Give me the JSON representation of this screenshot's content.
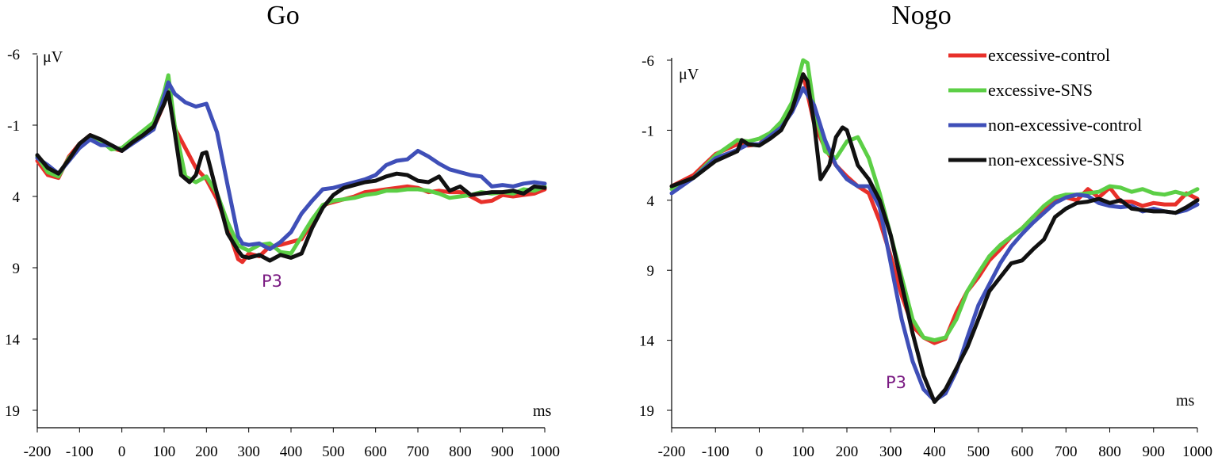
{
  "chart_data": [
    {
      "type": "line",
      "title": "Go",
      "xlabel": "ms",
      "ylabel": "μV",
      "xlim": [
        -200,
        1000
      ],
      "ylim": [
        -6,
        19
      ],
      "y_inverted": true,
      "x_ticks": [
        -200,
        -100,
        0,
        100,
        200,
        300,
        400,
        500,
        600,
        700,
        800,
        900,
        1000
      ],
      "y_ticks": [
        -6,
        -1,
        4,
        9,
        14,
        19
      ],
      "annotations": [
        {
          "text": "P3",
          "x": 355,
          "y": 11
        }
      ],
      "legend": "none",
      "series": [
        {
          "name": "excessive-control",
          "color": "#e8302a",
          "x": [
            -200,
            -175,
            -150,
            -125,
            -100,
            -75,
            -50,
            -25,
            0,
            25,
            50,
            75,
            100,
            110,
            125,
            150,
            175,
            200,
            225,
            250,
            275,
            285,
            300,
            325,
            350,
            375,
            400,
            425,
            450,
            475,
            500,
            525,
            550,
            575,
            600,
            625,
            650,
            675,
            700,
            725,
            750,
            775,
            800,
            825,
            850,
            875,
            900,
            925,
            950,
            975,
            1000
          ],
          "y": [
            1.5,
            2.5,
            2.7,
            1.2,
            0.3,
            -0.3,
            0.2,
            0.6,
            0.8,
            0.1,
            -0.4,
            -0.8,
            -2.5,
            -3.5,
            -0.8,
            0.6,
            2.0,
            2.8,
            4.2,
            6.2,
            8.4,
            8.6,
            8.0,
            8.2,
            7.5,
            7.4,
            7.2,
            7.0,
            5.8,
            4.6,
            4.4,
            4.2,
            4.0,
            3.7,
            3.6,
            3.5,
            3.4,
            3.3,
            3.4,
            3.7,
            3.6,
            3.7,
            3.7,
            4.0,
            4.4,
            4.3,
            3.9,
            4.0,
            3.9,
            3.8,
            3.5
          ]
        },
        {
          "name": "excessive-SNS",
          "color": "#5ccf46",
          "x": [
            -200,
            -175,
            -150,
            -125,
            -100,
            -75,
            -50,
            -25,
            0,
            25,
            50,
            75,
            100,
            110,
            125,
            150,
            175,
            200,
            225,
            250,
            275,
            285,
            300,
            325,
            350,
            375,
            400,
            425,
            450,
            475,
            500,
            525,
            550,
            575,
            600,
            625,
            650,
            675,
            700,
            725,
            750,
            775,
            800,
            825,
            850,
            875,
            900,
            925,
            950,
            975,
            1000
          ],
          "y": [
            1.2,
            2.3,
            2.6,
            1.3,
            0.5,
            -0.2,
            0.1,
            0.7,
            0.6,
            0.0,
            -0.6,
            -1.2,
            -3.3,
            -4.5,
            -1.0,
            2.6,
            3.0,
            2.6,
            3.8,
            5.8,
            7.4,
            7.6,
            7.8,
            7.4,
            7.3,
            7.9,
            8.0,
            6.8,
            5.6,
            4.6,
            4.3,
            4.2,
            4.1,
            3.9,
            3.8,
            3.6,
            3.6,
            3.5,
            3.5,
            3.6,
            3.8,
            4.1,
            4.0,
            3.9,
            3.7,
            3.8,
            3.7,
            3.8,
            3.5,
            3.6,
            3.3
          ]
        },
        {
          "name": "non-excessive-control",
          "color": "#3f4fb8",
          "x": [
            -200,
            -175,
            -150,
            -125,
            -100,
            -75,
            -50,
            -25,
            0,
            25,
            50,
            75,
            100,
            110,
            125,
            150,
            175,
            200,
            225,
            250,
            275,
            285,
            300,
            325,
            350,
            375,
            400,
            425,
            450,
            475,
            500,
            525,
            550,
            575,
            600,
            625,
            650,
            675,
            700,
            725,
            750,
            775,
            800,
            825,
            850,
            875,
            900,
            925,
            950,
            975,
            1000
          ],
          "y": [
            1.3,
            1.8,
            2.4,
            1.5,
            0.6,
            0.0,
            0.4,
            0.4,
            0.8,
            0.3,
            -0.2,
            -0.7,
            -3.0,
            -4.0,
            -3.2,
            -2.6,
            -2.3,
            -2.5,
            -0.5,
            3.2,
            6.8,
            7.3,
            7.4,
            7.3,
            7.7,
            7.2,
            6.5,
            5.2,
            4.3,
            3.5,
            3.4,
            3.2,
            3.0,
            2.8,
            2.5,
            1.8,
            1.5,
            1.4,
            0.8,
            1.2,
            1.7,
            2.1,
            2.3,
            2.5,
            2.6,
            3.3,
            3.2,
            3.3,
            3.1,
            3.0,
            3.1
          ]
        },
        {
          "name": "non-excessive-SNS",
          "color": "#111111",
          "x": [
            -200,
            -175,
            -150,
            -125,
            -100,
            -75,
            -50,
            -25,
            0,
            25,
            50,
            75,
            100,
            110,
            125,
            140,
            160,
            175,
            190,
            200,
            225,
            250,
            275,
            285,
            300,
            325,
            350,
            375,
            400,
            425,
            450,
            475,
            500,
            525,
            550,
            575,
            600,
            625,
            650,
            675,
            700,
            725,
            750,
            775,
            800,
            825,
            850,
            875,
            900,
            925,
            950,
            975,
            1000
          ],
          "y": [
            1.1,
            2.0,
            2.4,
            1.4,
            0.3,
            -0.3,
            0.0,
            0.4,
            0.8,
            0.2,
            -0.3,
            -0.9,
            -2.5,
            -3.3,
            -0.5,
            2.5,
            3.0,
            2.5,
            1.0,
            0.9,
            3.8,
            6.6,
            7.8,
            8.2,
            8.3,
            8.1,
            8.5,
            8.1,
            8.3,
            8.0,
            6.2,
            4.8,
            3.9,
            3.4,
            3.2,
            3.0,
            2.9,
            2.6,
            2.4,
            2.5,
            2.9,
            3.0,
            2.6,
            3.6,
            3.3,
            3.9,
            3.8,
            3.7,
            3.7,
            3.6,
            3.8,
            3.3,
            3.4
          ]
        }
      ]
    },
    {
      "type": "line",
      "title": "Nogo",
      "xlabel": "ms",
      "ylabel": "μV",
      "xlim": [
        -200,
        1000
      ],
      "ylim": [
        -6,
        19
      ],
      "y_inverted": true,
      "x_ticks": [
        -200,
        -100,
        0,
        100,
        200,
        300,
        400,
        500,
        600,
        700,
        800,
        900,
        1000
      ],
      "y_ticks": [
        -6,
        -1,
        4,
        9,
        14,
        19
      ],
      "annotations": [
        {
          "text": "P3",
          "x": 330,
          "y": 17.5
        }
      ],
      "legend": "top-right",
      "series": [
        {
          "name": "excessive-control",
          "color": "#e8302a",
          "x": [
            -200,
            -150,
            -100,
            -50,
            -25,
            0,
            25,
            50,
            75,
            100,
            125,
            150,
            175,
            200,
            225,
            250,
            275,
            300,
            325,
            350,
            375,
            400,
            425,
            450,
            475,
            500,
            525,
            550,
            575,
            600,
            625,
            650,
            675,
            700,
            725,
            750,
            775,
            800,
            825,
            850,
            875,
            900,
            925,
            950,
            975,
            1000
          ],
          "y": [
            3.0,
            2.2,
            0.7,
            0.0,
            0.1,
            0.0,
            -0.8,
            -1.5,
            -2.5,
            -5.0,
            -1.5,
            0.3,
            1.5,
            2.3,
            3.0,
            3.5,
            5.5,
            8.0,
            10.8,
            13.0,
            13.8,
            14.2,
            13.9,
            12.0,
            10.5,
            9.5,
            8.3,
            7.5,
            6.6,
            6.0,
            5.2,
            4.6,
            4.0,
            3.8,
            4.0,
            3.2,
            3.8,
            3.1,
            4.1,
            4.1,
            4.4,
            4.2,
            4.3,
            4.3,
            3.5,
            3.9
          ]
        },
        {
          "name": "excessive-SNS",
          "color": "#5ccf46",
          "x": [
            -200,
            -150,
            -100,
            -50,
            -25,
            0,
            25,
            50,
            75,
            100,
            110,
            125,
            150,
            175,
            200,
            225,
            250,
            275,
            300,
            325,
            350,
            375,
            400,
            425,
            450,
            475,
            500,
            525,
            550,
            575,
            600,
            625,
            650,
            675,
            700,
            725,
            750,
            775,
            800,
            825,
            850,
            875,
            900,
            925,
            950,
            975,
            1000
          ],
          "y": [
            3.2,
            2.4,
            0.8,
            -0.3,
            -0.2,
            -0.4,
            -0.8,
            -1.6,
            -3.0,
            -6.0,
            -5.8,
            -2.6,
            0.5,
            1.0,
            -0.2,
            -0.5,
            1.0,
            3.5,
            6.5,
            9.5,
            12.5,
            13.8,
            14.0,
            13.8,
            12.5,
            10.5,
            9.2,
            8.0,
            7.2,
            6.6,
            6.0,
            5.2,
            4.4,
            3.8,
            3.6,
            3.6,
            3.5,
            3.4,
            3.0,
            3.1,
            3.4,
            3.2,
            3.5,
            3.6,
            3.4,
            3.6,
            3.2
          ]
        },
        {
          "name": "non-excessive-control",
          "color": "#3f4fb8",
          "x": [
            -200,
            -150,
            -100,
            -50,
            -25,
            0,
            25,
            50,
            75,
            100,
            125,
            150,
            175,
            200,
            225,
            250,
            275,
            300,
            325,
            350,
            375,
            400,
            425,
            450,
            475,
            500,
            525,
            550,
            575,
            600,
            625,
            650,
            675,
            700,
            725,
            750,
            775,
            800,
            825,
            850,
            875,
            900,
            925,
            950,
            975,
            1000
          ],
          "y": [
            3.5,
            2.4,
            1.0,
            0.4,
            0.0,
            0.0,
            -0.6,
            -1.2,
            -2.3,
            -4.0,
            -2.8,
            -0.3,
            1.5,
            2.5,
            3.0,
            3.0,
            4.5,
            8.5,
            12.5,
            15.5,
            17.5,
            18.3,
            17.8,
            16.2,
            13.8,
            11.5,
            10.0,
            8.5,
            7.3,
            6.4,
            5.6,
            4.9,
            4.2,
            3.8,
            3.6,
            3.7,
            4.2,
            4.4,
            4.5,
            4.4,
            4.8,
            4.6,
            4.8,
            4.9,
            4.7,
            4.3
          ]
        },
        {
          "name": "non-excessive-SNS",
          "color": "#111111",
          "x": [
            -200,
            -150,
            -100,
            -50,
            -40,
            -25,
            0,
            25,
            50,
            75,
            100,
            110,
            125,
            140,
            160,
            175,
            190,
            200,
            225,
            250,
            275,
            300,
            325,
            350,
            375,
            400,
            425,
            450,
            475,
            500,
            525,
            550,
            575,
            600,
            625,
            650,
            675,
            700,
            725,
            750,
            775,
            800,
            825,
            850,
            875,
            900,
            925,
            950,
            975,
            1000
          ],
          "y": [
            3.0,
            2.4,
            1.2,
            0.5,
            -0.3,
            0.0,
            0.1,
            -0.4,
            -1.0,
            -2.5,
            -5.0,
            -4.5,
            -1.5,
            2.5,
            1.5,
            -0.5,
            -1.2,
            -1.0,
            1.5,
            2.5,
            4.0,
            6.5,
            10.0,
            13.5,
            16.5,
            18.4,
            17.5,
            16.0,
            14.5,
            12.5,
            10.5,
            9.5,
            8.5,
            8.3,
            7.5,
            6.8,
            5.2,
            4.6,
            4.2,
            4.1,
            3.9,
            4.2,
            4.0,
            4.6,
            4.7,
            4.8,
            4.8,
            4.9,
            4.5,
            4.0
          ]
        }
      ]
    }
  ]
}
